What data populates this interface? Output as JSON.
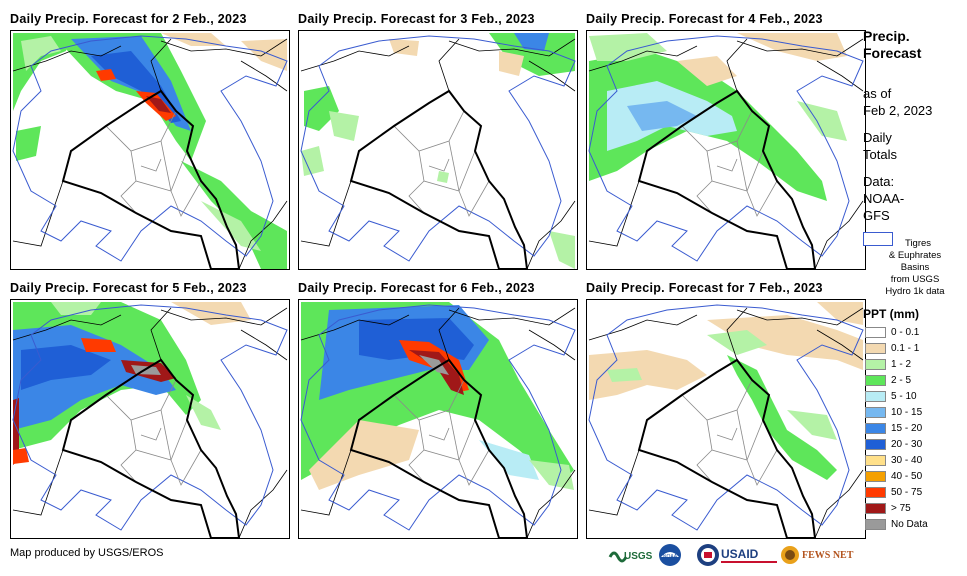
{
  "panels": [
    {
      "title": "Daily Precip. Forecast for 2 Feb., 2023"
    },
    {
      "title": "Daily Precip. Forecast for 3 Feb., 2023"
    },
    {
      "title": "Daily Precip. Forecast for 4 Feb., 2023"
    },
    {
      "title": "Daily Precip. Forecast for 5 Feb., 2023"
    },
    {
      "title": "Daily Precip. Forecast for 6 Feb., 2023"
    },
    {
      "title": "Daily Precip. Forecast for 7 Feb., 2023"
    }
  ],
  "sidebar": {
    "title_line1": "Precip.",
    "title_line2": "Forecast",
    "asof_line1": "as of",
    "asof_line2": "Feb 2, 2023",
    "daily_line1": "Daily",
    "daily_line2": "Totals",
    "data_line1": "Data:",
    "data_line2": "NOAA-",
    "data_line3": "GFS",
    "basin_line1": "Tigres",
    "basin_line2": "& Euphrates",
    "basin_line3": "Basins",
    "basin_line4": "from USGS",
    "basin_line5": "Hydro 1k data"
  },
  "legend": {
    "title": "PPT (mm)",
    "items": [
      {
        "label": "0 - 0.1",
        "color": "#ffffff"
      },
      {
        "label": "0.1 - 1",
        "color": "#f3d9b1"
      },
      {
        "label": "1 - 2",
        "color": "#b4f2a6"
      },
      {
        "label": "2 - 5",
        "color": "#5ee65a"
      },
      {
        "label": "5 - 10",
        "color": "#b8ecf5"
      },
      {
        "label": "10 - 15",
        "color": "#76b8f0"
      },
      {
        "label": "15 - 20",
        "color": "#3b86e6"
      },
      {
        "label": "20 - 30",
        "color": "#1f5fd6"
      },
      {
        "label": "30 - 40",
        "color": "#ffe08a"
      },
      {
        "label": "40 - 50",
        "color": "#f5a000"
      },
      {
        "label": "50 - 75",
        "color": "#ff3a00"
      },
      {
        "label": "> 75",
        "color": "#a01818"
      },
      {
        "label": "No Data",
        "color": "#9a9a9a"
      }
    ]
  },
  "credit": "Map produced by USGS/EROS",
  "logos": {
    "usgs": "USGS",
    "noaa": "NOAA",
    "usaid": "USAID",
    "fewsnet": "FEWS NET"
  }
}
